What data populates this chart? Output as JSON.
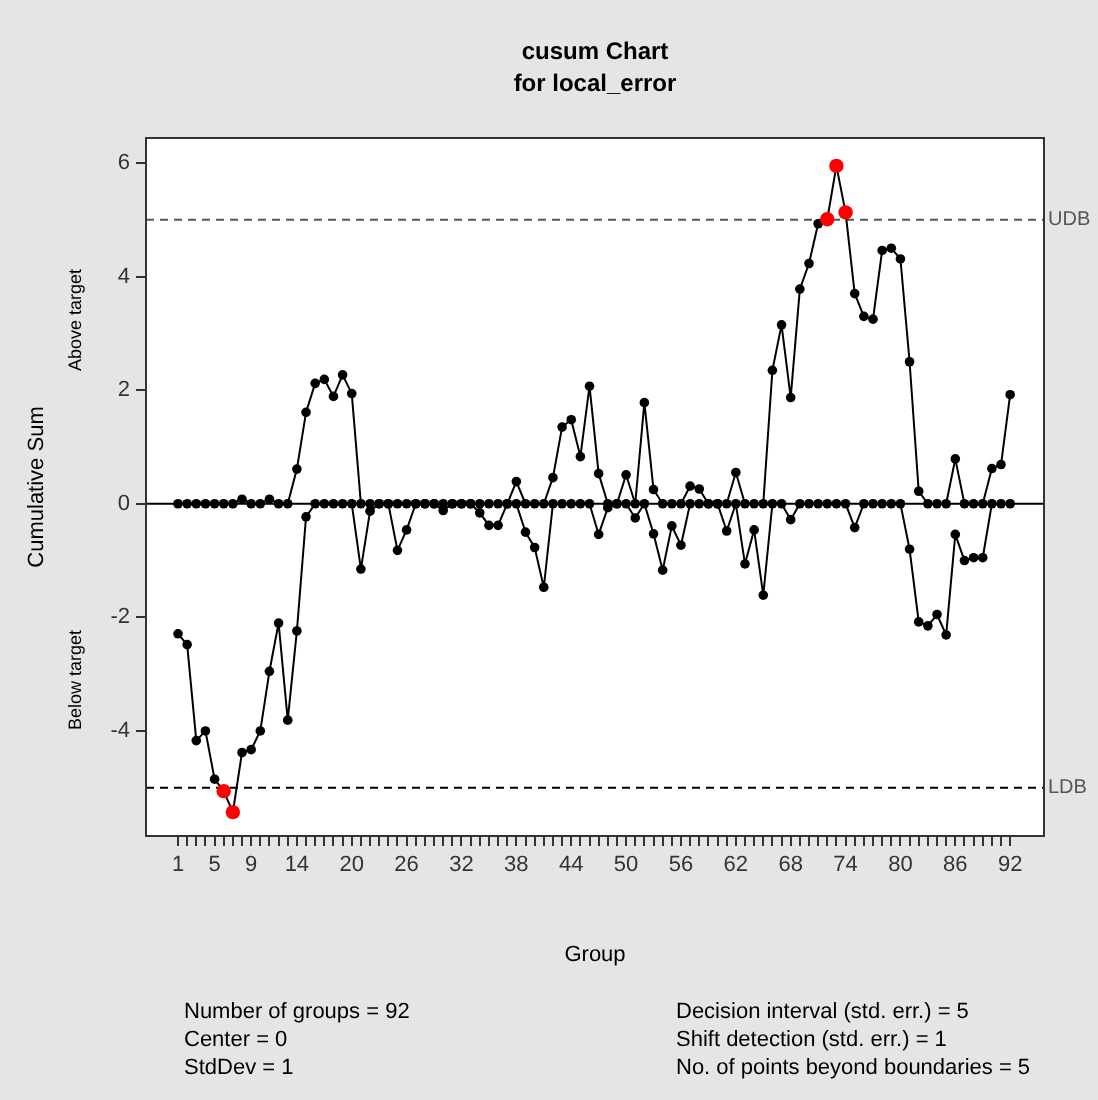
{
  "chart_data": {
    "type": "line",
    "title": "cusum Chart",
    "subtitle": "for local_error",
    "xlabel": "Group",
    "ylabel": "Cumulative Sum",
    "x": [
      1,
      2,
      3,
      4,
      5,
      6,
      7,
      8,
      9,
      10,
      11,
      12,
      13,
      14,
      15,
      16,
      17,
      18,
      19,
      20,
      21,
      22,
      23,
      24,
      25,
      26,
      27,
      28,
      29,
      30,
      31,
      32,
      33,
      34,
      35,
      36,
      37,
      38,
      39,
      40,
      41,
      42,
      43,
      44,
      45,
      46,
      47,
      48,
      49,
      50,
      51,
      52,
      53,
      54,
      55,
      56,
      57,
      58,
      59,
      60,
      61,
      62,
      63,
      64,
      65,
      66,
      67,
      68,
      69,
      70,
      71,
      72,
      73,
      74,
      75,
      76,
      77,
      78,
      79,
      80,
      81,
      82,
      83,
      84,
      85,
      86,
      87,
      88,
      89,
      90,
      91,
      92
    ],
    "series": [
      {
        "color": "#000000",
        "values": [
          0,
          0,
          0,
          0,
          0,
          0,
          0,
          0.08,
          0,
          0,
          0.08,
          0,
          0,
          0.61,
          1.61,
          2.12,
          2.19,
          1.89,
          2.27,
          1.94,
          0,
          0,
          0,
          0,
          0,
          0,
          0,
          0,
          0,
          0,
          0,
          0,
          0,
          0,
          0,
          0,
          0,
          0.39,
          0,
          0,
          0,
          0.46,
          1.35,
          1.48,
          0.83,
          2.07,
          0.53,
          0,
          0,
          0.51,
          0,
          1.78,
          0.25,
          0,
          0,
          0,
          0.31,
          0.26,
          0,
          0,
          0,
          0.55,
          0,
          0,
          0,
          2.35,
          3.15,
          1.87,
          3.78,
          4.23,
          4.93,
          5.01,
          5.95,
          5.13,
          3.7,
          3.3,
          3.25,
          4.46,
          4.5,
          4.31,
          2.5,
          0.22,
          0,
          0,
          0,
          0.79,
          0,
          0,
          0,
          0.62,
          0.69,
          1.92
        ],
        "colors": [
          "#000000",
          "#000000",
          "#000000",
          "#000000",
          "#000000",
          "#000000",
          "#000000",
          "#000000",
          "#000000",
          "#000000",
          "#000000",
          "#000000",
          "#000000",
          "#000000",
          "#000000",
          "#000000",
          "#000000",
          "#000000",
          "#000000",
          "#000000",
          "#000000",
          "#000000",
          "#000000",
          "#000000",
          "#000000",
          "#000000",
          "#000000",
          "#000000",
          "#000000",
          "#000000",
          "#000000",
          "#000000",
          "#000000",
          "#000000",
          "#000000",
          "#000000",
          "#000000",
          "#000000",
          "#000000",
          "#000000",
          "#000000",
          "#000000",
          "#000000",
          "#000000",
          "#000000",
          "#000000",
          "#000000",
          "#000000",
          "#000000",
          "#000000",
          "#000000",
          "#000000",
          "#000000",
          "#000000",
          "#000000",
          "#000000",
          "#000000",
          "#000000",
          "#000000",
          "#000000",
          "#000000",
          "#000000",
          "#000000",
          "#000000",
          "#000000",
          "#000000",
          "#000000",
          "#000000",
          "#000000",
          "#000000",
          "#000000",
          "#ff0000",
          "#ff0000",
          "#ff0000",
          "#000000",
          "#000000",
          "#000000",
          "#000000",
          "#000000",
          "#000000",
          "#000000",
          "#000000",
          "#000000",
          "#000000",
          "#000000",
          "#000000",
          "#000000",
          "#000000",
          "#000000",
          "#000000",
          "#000000",
          "#000000"
        ]
      },
      {
        "color": "#000000",
        "values": [
          -2.29,
          -2.48,
          -4.17,
          -4.0,
          -4.85,
          -5.06,
          -5.43,
          -4.38,
          -4.33,
          -4.0,
          -2.95,
          -2.1,
          -3.81,
          -2.24,
          -0.23,
          0,
          0,
          0,
          0,
          0,
          -1.15,
          -0.13,
          0,
          0,
          -0.82,
          -0.46,
          0,
          0,
          0,
          -0.12,
          0,
          0,
          0,
          -0.16,
          -0.38,
          -0.38,
          0,
          0,
          -0.5,
          -0.77,
          -1.47,
          0,
          0,
          0,
          0,
          0,
          -0.54,
          -0.07,
          0,
          0,
          -0.25,
          0,
          -0.53,
          -1.17,
          -0.39,
          -0.73,
          0,
          0,
          0,
          0,
          -0.48,
          0,
          -1.06,
          -0.46,
          -1.61,
          0,
          0,
          -0.28,
          0,
          0,
          0,
          0,
          0,
          0,
          -0.42,
          0,
          0,
          0,
          0,
          0,
          -0.8,
          -2.08,
          -2.15,
          -1.95,
          -2.31,
          -0.54,
          -1.0,
          -0.95,
          -0.95,
          0,
          0,
          0
        ],
        "colors": [
          "#000000",
          "#000000",
          "#000000",
          "#000000",
          "#000000",
          "#ff0000",
          "#ff0000",
          "#000000",
          "#000000",
          "#000000",
          "#000000",
          "#000000",
          "#000000",
          "#000000",
          "#000000",
          "#000000",
          "#000000",
          "#000000",
          "#000000",
          "#000000",
          "#000000",
          "#000000",
          "#000000",
          "#000000",
          "#000000",
          "#000000",
          "#000000",
          "#000000",
          "#000000",
          "#000000",
          "#000000",
          "#000000",
          "#000000",
          "#000000",
          "#000000",
          "#000000",
          "#000000",
          "#000000",
          "#000000",
          "#000000",
          "#000000",
          "#000000",
          "#000000",
          "#000000",
          "#000000",
          "#000000",
          "#000000",
          "#000000",
          "#000000",
          "#000000",
          "#000000",
          "#000000",
          "#000000",
          "#000000",
          "#000000",
          "#000000",
          "#000000",
          "#000000",
          "#000000",
          "#000000",
          "#000000",
          "#000000",
          "#000000",
          "#000000",
          "#000000",
          "#000000",
          "#000000",
          "#000000",
          "#000000",
          "#000000",
          "#000000",
          "#000000",
          "#000000",
          "#000000",
          "#000000",
          "#000000",
          "#000000",
          "#000000",
          "#000000",
          "#000000",
          "#000000",
          "#000000",
          "#000000",
          "#000000",
          "#000000",
          "#000000",
          "#000000",
          "#000000",
          "#000000",
          "#000000",
          "#000000",
          "#000000"
        ]
      }
    ],
    "xlim": [
      -2.5,
      95.7
    ],
    "xticks": [
      1,
      {
        "value": 2,
        "label": null
      },
      {
        "value": 3,
        "label": null
      },
      {
        "value": 4,
        "label": null
      },
      5,
      {
        "value": 6,
        "label": null
      },
      {
        "value": 7,
        "label": null
      },
      {
        "value": 8,
        "label": null
      },
      9,
      {
        "value": 10,
        "label": null
      },
      {
        "value": 11,
        "label": null
      },
      {
        "value": 12,
        "label": null
      },
      {
        "value": 13,
        "label": null
      },
      14,
      {
        "value": 15,
        "label": null
      },
      {
        "value": 16,
        "label": null
      },
      {
        "value": 17,
        "label": null
      },
      {
        "value": 18,
        "label": null
      },
      {
        "value": 19,
        "label": null
      },
      20,
      {
        "value": 21,
        "label": null
      },
      {
        "value": 22,
        "label": null
      },
      {
        "value": 23,
        "label": null
      },
      {
        "value": 24,
        "label": null
      },
      {
        "value": 25,
        "label": null
      },
      26,
      {
        "value": 27,
        "label": null
      },
      {
        "value": 28,
        "label": null
      },
      {
        "value": 29,
        "label": null
      },
      {
        "value": 30,
        "label": null
      },
      {
        "value": 31,
        "label": null
      },
      32,
      {
        "value": 33,
        "label": null
      },
      {
        "value": 34,
        "label": null
      },
      {
        "value": 35,
        "label": null
      },
      {
        "value": 36,
        "label": null
      },
      {
        "value": 37,
        "label": null
      },
      38,
      {
        "value": 39,
        "label": null
      },
      {
        "value": 40,
        "label": null
      },
      {
        "value": 41,
        "label": null
      },
      {
        "value": 42,
        "label": null
      },
      {
        "value": 43,
        "label": null
      },
      44,
      {
        "value": 45,
        "label": null
      },
      {
        "value": 46,
        "label": null
      },
      {
        "value": 47,
        "label": null
      },
      {
        "value": 48,
        "label": null
      },
      {
        "value": 49,
        "label": null
      },
      50,
      {
        "value": 51,
        "label": null
      },
      {
        "value": 52,
        "label": null
      },
      {
        "value": 53,
        "label": null
      },
      {
        "value": 54,
        "label": null
      },
      {
        "value": 55,
        "label": null
      },
      56,
      {
        "value": 57,
        "label": null
      },
      {
        "value": 58,
        "label": null
      },
      {
        "value": 59,
        "label": null
      },
      {
        "value": 60,
        "label": null
      },
      {
        "value": 61,
        "label": null
      },
      62,
      {
        "value": 63,
        "label": null
      },
      {
        "value": 64,
        "label": null
      },
      {
        "value": 65,
        "label": null
      },
      {
        "value": 66,
        "label": null
      },
      {
        "value": 67,
        "label": null
      },
      68,
      {
        "value": 69,
        "label": null
      },
      {
        "value": 70,
        "label": null
      },
      {
        "value": 71,
        "label": null
      },
      {
        "value": 72,
        "label": null
      },
      {
        "value": 73,
        "label": null
      },
      74,
      {
        "value": 75,
        "label": null
      },
      {
        "value": 76,
        "label": null
      },
      {
        "value": 77,
        "label": null
      },
      {
        "value": 78,
        "label": null
      },
      {
        "value": 79,
        "label": null
      },
      80,
      {
        "value": 81,
        "label": null
      },
      {
        "value": 82,
        "label": null
      },
      {
        "value": 83,
        "label": null
      },
      {
        "value": 84,
        "label": null
      },
      {
        "value": 85,
        "label": null
      },
      86,
      {
        "value": 87,
        "label": null
      },
      {
        "value": 88,
        "label": null
      },
      {
        "value": 89,
        "label": null
      },
      {
        "value": 90,
        "label": null
      },
      {
        "value": 91,
        "label": null
      },
      92
    ],
    "ylim": [
      -5.85,
      6.44
    ],
    "yticks": [
      -4,
      -2,
      0,
      2,
      4,
      6
    ],
    "ref_lines": [
      {
        "axis": "y",
        "value": 0,
        "label": null,
        "color": "#000000",
        "line_style": "solid"
      },
      {
        "axis": "y",
        "value": 5,
        "label": "UDB",
        "color": "#555555",
        "line_style": "dashed"
      },
      {
        "axis": "y",
        "value": -5,
        "label": "LDB",
        "color": "#000000",
        "line_style": "dashed"
      }
    ],
    "annotations": [
      "Above target",
      "Below target",
      "Number of groups = 92",
      "Center = 0",
      "StdDev = 1",
      "Decision interval (std. err.) = 5",
      "Shift detection (std. err.) = 1",
      "No. of points beyond boundaries = 5"
    ],
    "marker": "circle",
    "line_style": "solid",
    "grid": false,
    "legend": false
  }
}
